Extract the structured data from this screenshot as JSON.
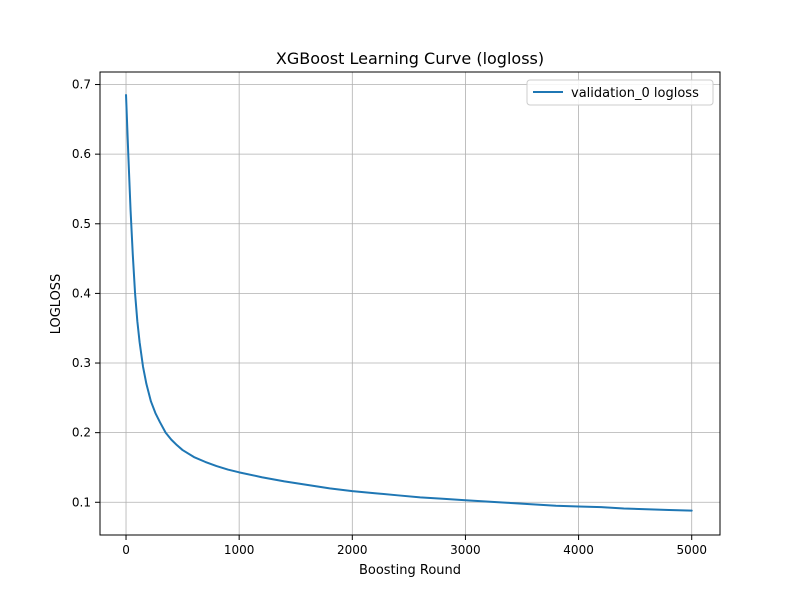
{
  "chart_data": {
    "type": "line",
    "title": "XGBoost Learning Curve (logloss)",
    "xlabel": "Boosting Round",
    "ylabel": "LOGLOSS",
    "xlim": [
      -230,
      5250
    ],
    "ylim": [
      0.053,
      0.718
    ],
    "xticks": [
      0,
      1000,
      2000,
      3000,
      4000,
      5000
    ],
    "yticks": [
      0.1,
      0.2,
      0.3,
      0.4,
      0.5,
      0.6,
      0.7
    ],
    "grid": true,
    "legend": "top-right",
    "series": [
      {
        "name": "validation_0 logloss",
        "color": "#1f77b4",
        "x": [
          0,
          20,
          40,
          60,
          80,
          100,
          120,
          150,
          180,
          220,
          260,
          300,
          350,
          400,
          450,
          500,
          600,
          700,
          800,
          900,
          1000,
          1200,
          1400,
          1600,
          1800,
          2000,
          2200,
          2400,
          2600,
          2800,
          3000,
          3200,
          3400,
          3600,
          3800,
          4000,
          4200,
          4400,
          4600,
          4800,
          5000
        ],
        "y": [
          0.685,
          0.6,
          0.52,
          0.455,
          0.4,
          0.36,
          0.33,
          0.295,
          0.27,
          0.245,
          0.228,
          0.215,
          0.2,
          0.19,
          0.182,
          0.175,
          0.165,
          0.158,
          0.152,
          0.147,
          0.143,
          0.136,
          0.13,
          0.125,
          0.12,
          0.116,
          0.113,
          0.11,
          0.107,
          0.105,
          0.103,
          0.101,
          0.099,
          0.097,
          0.095,
          0.094,
          0.093,
          0.091,
          0.09,
          0.089,
          0.088
        ]
      }
    ]
  }
}
